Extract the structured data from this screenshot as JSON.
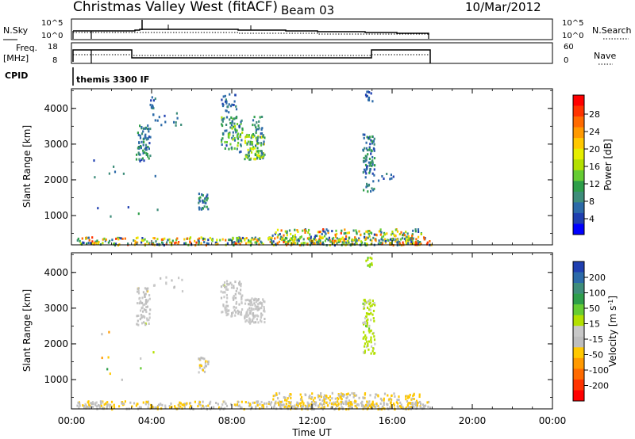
{
  "header": {
    "title": "Christmas Valley West (fitACF)",
    "beam": "Beam 03",
    "date": "10/Mar/2012"
  },
  "status_panels": {
    "nsky": {
      "left_label": "N.Sky",
      "right_label": "N.Search",
      "left_ticks": [
        "10^5",
        "10^0"
      ],
      "right_ticks": [
        "10^5",
        "10^0"
      ]
    },
    "freq": {
      "left_label_1": "Freq.",
      "left_label_2": "[MHz]",
      "left_ticks": [
        "18",
        "8"
      ],
      "right_label": "Nave",
      "right_ticks": [
        "60",
        "0"
      ]
    },
    "cpid": {
      "label": "CPID",
      "value": "themis 3300 IF"
    }
  },
  "power_colorbar": {
    "title": "Power [dB]",
    "ticks": [
      "28",
      "24",
      "20",
      "16",
      "12",
      "8",
      "4"
    ],
    "colors": [
      "#ff0000",
      "#ff3300",
      "#ff6a00",
      "#ff9900",
      "#ffc800",
      "#e6ee00",
      "#b3e000",
      "#66cc33",
      "#2e9e4a",
      "#3e8d7a",
      "#2c6aa8",
      "#1f3fb0",
      "#0000ff"
    ]
  },
  "velocity_colorbar": {
    "title": "Velocity [m s",
    "title_sup": "-1",
    "title_close": "]",
    "ticks": [
      "200",
      "100",
      "50",
      "15",
      "-15",
      "-50",
      "-100",
      "-200"
    ],
    "colors": [
      "#1f3fb0",
      "#2c6aa8",
      "#3e8d7a",
      "#2e9e4a",
      "#66cc33",
      "#b3e000",
      "#c8c8c8",
      "#bebebe",
      "#ffc800",
      "#ff9900",
      "#ff6a00",
      "#ff3300",
      "#ff0000"
    ]
  },
  "chart_data": [
    {
      "type": "heatmap",
      "name": "Power",
      "ylabel": "Slant Range [km]",
      "x_ticks": [
        "00:00",
        "04:00",
        "08:00",
        "12:00",
        "16:00",
        "20:00",
        "00:00"
      ],
      "y_ticks": [
        "1000",
        "2000",
        "3000",
        "4000"
      ],
      "xlim_hours": [
        0,
        24
      ],
      "ylim_km": [
        180,
        4550
      ],
      "scale_range_db": [
        0,
        32
      ],
      "grid": false,
      "patches": [
        {
          "t": [
            3.2,
            3.9
          ],
          "r": [
            2550,
            3600
          ],
          "n": 70,
          "v": [
            4,
            12
          ]
        },
        {
          "t": [
            4.0,
            5.5
          ],
          "r": [
            3500,
            3900
          ],
          "n": 14,
          "v": [
            4,
            10
          ]
        },
        {
          "t": [
            3.9,
            4.2
          ],
          "r": [
            4000,
            4400
          ],
          "n": 10,
          "v": [
            4,
            8
          ]
        },
        {
          "t": [
            6.3,
            6.8
          ],
          "r": [
            1200,
            1650
          ],
          "n": 30,
          "v": [
            4,
            12
          ]
        },
        {
          "t": [
            7.4,
            8.5
          ],
          "r": [
            2800,
            3800
          ],
          "n": 90,
          "v": [
            4,
            16
          ]
        },
        {
          "t": [
            7.4,
            8.2
          ],
          "r": [
            3900,
            4450
          ],
          "n": 25,
          "v": [
            4,
            8
          ]
        },
        {
          "t": [
            8.6,
            9.6
          ],
          "r": [
            2600,
            3300
          ],
          "n": 110,
          "v": [
            6,
            20
          ]
        },
        {
          "t": [
            9.0,
            9.5
          ],
          "r": [
            3300,
            3800
          ],
          "n": 20,
          "v": [
            4,
            12
          ]
        },
        {
          "t": [
            14.5,
            15.1
          ],
          "r": [
            1700,
            3300
          ],
          "n": 90,
          "v": [
            4,
            12
          ]
        },
        {
          "t": [
            14.6,
            15.0
          ],
          "r": [
            4200,
            4500
          ],
          "n": 12,
          "v": [
            4,
            8
          ]
        },
        {
          "t": [
            15.0,
            16.3
          ],
          "r": [
            2000,
            2200
          ],
          "n": 8,
          "v": [
            4,
            8
          ]
        },
        {
          "t": [
            1.0,
            4.5
          ],
          "r": [
            1000,
            2600
          ],
          "n": 12,
          "v": [
            4,
            10
          ]
        },
        {
          "t": [
            0.2,
            18.0
          ],
          "r": [
            200,
            420
          ],
          "n": 380,
          "v": [
            3,
            28
          ]
        },
        {
          "t": [
            10.0,
            17.5
          ],
          "r": [
            200,
            650
          ],
          "n": 260,
          "v": [
            3,
            28
          ]
        }
      ]
    },
    {
      "type": "heatmap",
      "name": "Velocity",
      "ylabel": "Slant Range [km]",
      "xlabel": "Time UT",
      "x_ticks": [
        "00:00",
        "04:00",
        "08:00",
        "12:00",
        "16:00",
        "20:00",
        "00:00"
      ],
      "y_ticks": [
        "1000",
        "2000",
        "3000",
        "4000"
      ],
      "xlim_hours": [
        0,
        24
      ],
      "ylim_km": [
        180,
        4550
      ],
      "scale_range_ms": [
        -250,
        250
      ],
      "grid": false,
      "patches": [
        {
          "t": [
            3.2,
            3.9
          ],
          "r": [
            2550,
            3600
          ],
          "n": 70,
          "v": [
            -60,
            20
          ]
        },
        {
          "t": [
            4.0,
            5.5
          ],
          "r": [
            3500,
            3900
          ],
          "n": 12,
          "v": [
            -40,
            20
          ]
        },
        {
          "t": [
            6.3,
            6.8
          ],
          "r": [
            1200,
            1650
          ],
          "n": 25,
          "v": [
            -80,
            -10
          ]
        },
        {
          "t": [
            7.4,
            8.5
          ],
          "r": [
            2800,
            3800
          ],
          "n": 90,
          "v": [
            -50,
            20
          ]
        },
        {
          "t": [
            8.6,
            9.6
          ],
          "r": [
            2600,
            3300
          ],
          "n": 110,
          "v": [
            -30,
            15
          ]
        },
        {
          "t": [
            14.5,
            15.1
          ],
          "r": [
            1700,
            3300
          ],
          "n": 90,
          "v": [
            5,
            60
          ]
        },
        {
          "t": [
            14.6,
            15.0
          ],
          "r": [
            4200,
            4500
          ],
          "n": 12,
          "v": [
            20,
            80
          ]
        },
        {
          "t": [
            1.0,
            4.5
          ],
          "r": [
            1000,
            2600
          ],
          "n": 10,
          "v": [
            -150,
            150
          ]
        },
        {
          "t": [
            0.2,
            18.0
          ],
          "r": [
            200,
            420
          ],
          "n": 380,
          "v": [
            -80,
            -10
          ]
        },
        {
          "t": [
            10.0,
            17.5
          ],
          "r": [
            200,
            650
          ],
          "n": 260,
          "v": [
            -90,
            -20
          ]
        }
      ]
    }
  ]
}
